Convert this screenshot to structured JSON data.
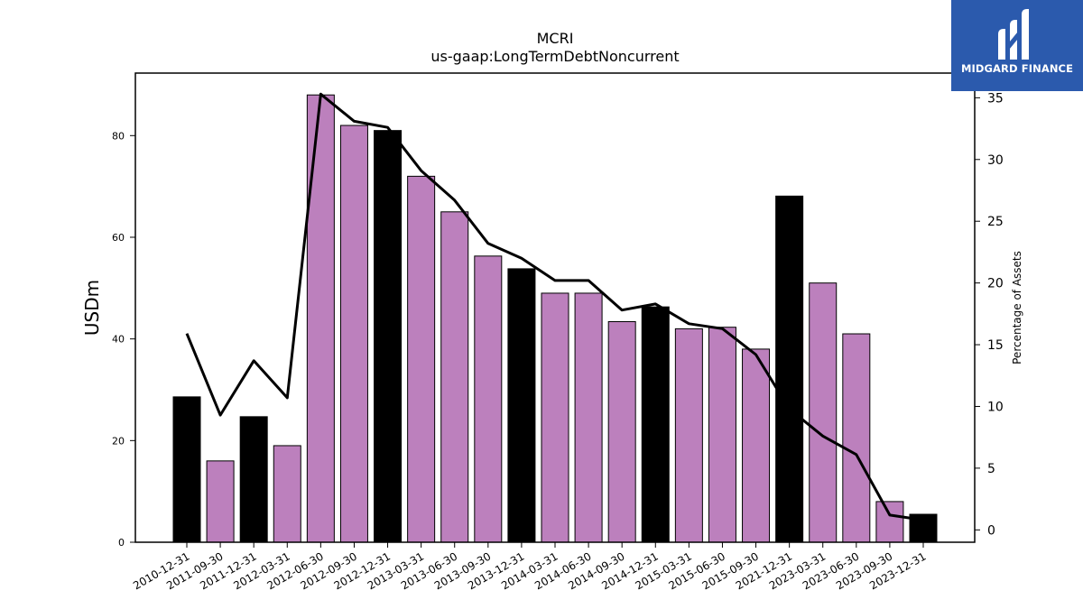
{
  "logo": {
    "text": "MIDGARD FINANCE",
    "icon": "midgard-logo-icon"
  },
  "chart_data": {
    "type": "bar",
    "title": "MCRI",
    "subtitle": "us-gaap:LongTermDebtNoncurrent",
    "ylabel": "USDm",
    "y2label": "Percentage of Assets",
    "xlabel": "",
    "categories": [
      "2010-12-31",
      "2011-09-30",
      "2011-12-31",
      "2012-03-31",
      "2012-06-30",
      "2012-09-30",
      "2012-12-31",
      "2013-03-31",
      "2013-06-30",
      "2013-09-30",
      "2013-12-31",
      "2014-03-31",
      "2014-06-30",
      "2014-09-30",
      "2014-12-31",
      "2015-03-31",
      "2015-06-30",
      "2015-09-30",
      "2021-12-31",
      "2023-03-31",
      "2023-06-30",
      "2023-09-30",
      "2023-12-31"
    ],
    "series": [
      {
        "type": "bar",
        "values": [
          28.6,
          16.0,
          24.7,
          19.0,
          88.0,
          82.0,
          81.0,
          72.0,
          65.0,
          56.3,
          53.8,
          49.0,
          49.0,
          43.4,
          46.3,
          42.0,
          42.3,
          38.0,
          68.1,
          51.0,
          41.0,
          8.0,
          5.5
        ],
        "colors": [
          "#000000",
          "#bc80bd",
          "#000000",
          "#bc80bd",
          "#bc80bd",
          "#bc80bd",
          "#000000",
          "#bc80bd",
          "#bc80bd",
          "#bc80bd",
          "#000000",
          "#bc80bd",
          "#bc80bd",
          "#bc80bd",
          "#000000",
          "#bc80bd",
          "#bc80bd",
          "#bc80bd",
          "#000000",
          "#bc80bd",
          "#bc80bd",
          "#bc80bd",
          "#000000"
        ]
      },
      {
        "type": "line",
        "axis": "right",
        "values": [
          15.9,
          9.3,
          13.7,
          10.7,
          35.3,
          33.1,
          32.6,
          29.1,
          26.7,
          23.2,
          22.0,
          20.2,
          20.2,
          17.8,
          18.3,
          16.7,
          16.3,
          14.2,
          9.8,
          7.6,
          6.1,
          1.2,
          0.8
        ],
        "color": "#000000"
      }
    ],
    "ylim": [
      0,
      92.3
    ],
    "y2lim": [
      -1.0,
      37.0
    ],
    "yticks": [
      0,
      20,
      40,
      60,
      80
    ],
    "y2ticks": [
      0,
      5,
      10,
      15,
      20,
      25,
      30,
      35
    ],
    "grid": false,
    "legend": "none"
  }
}
